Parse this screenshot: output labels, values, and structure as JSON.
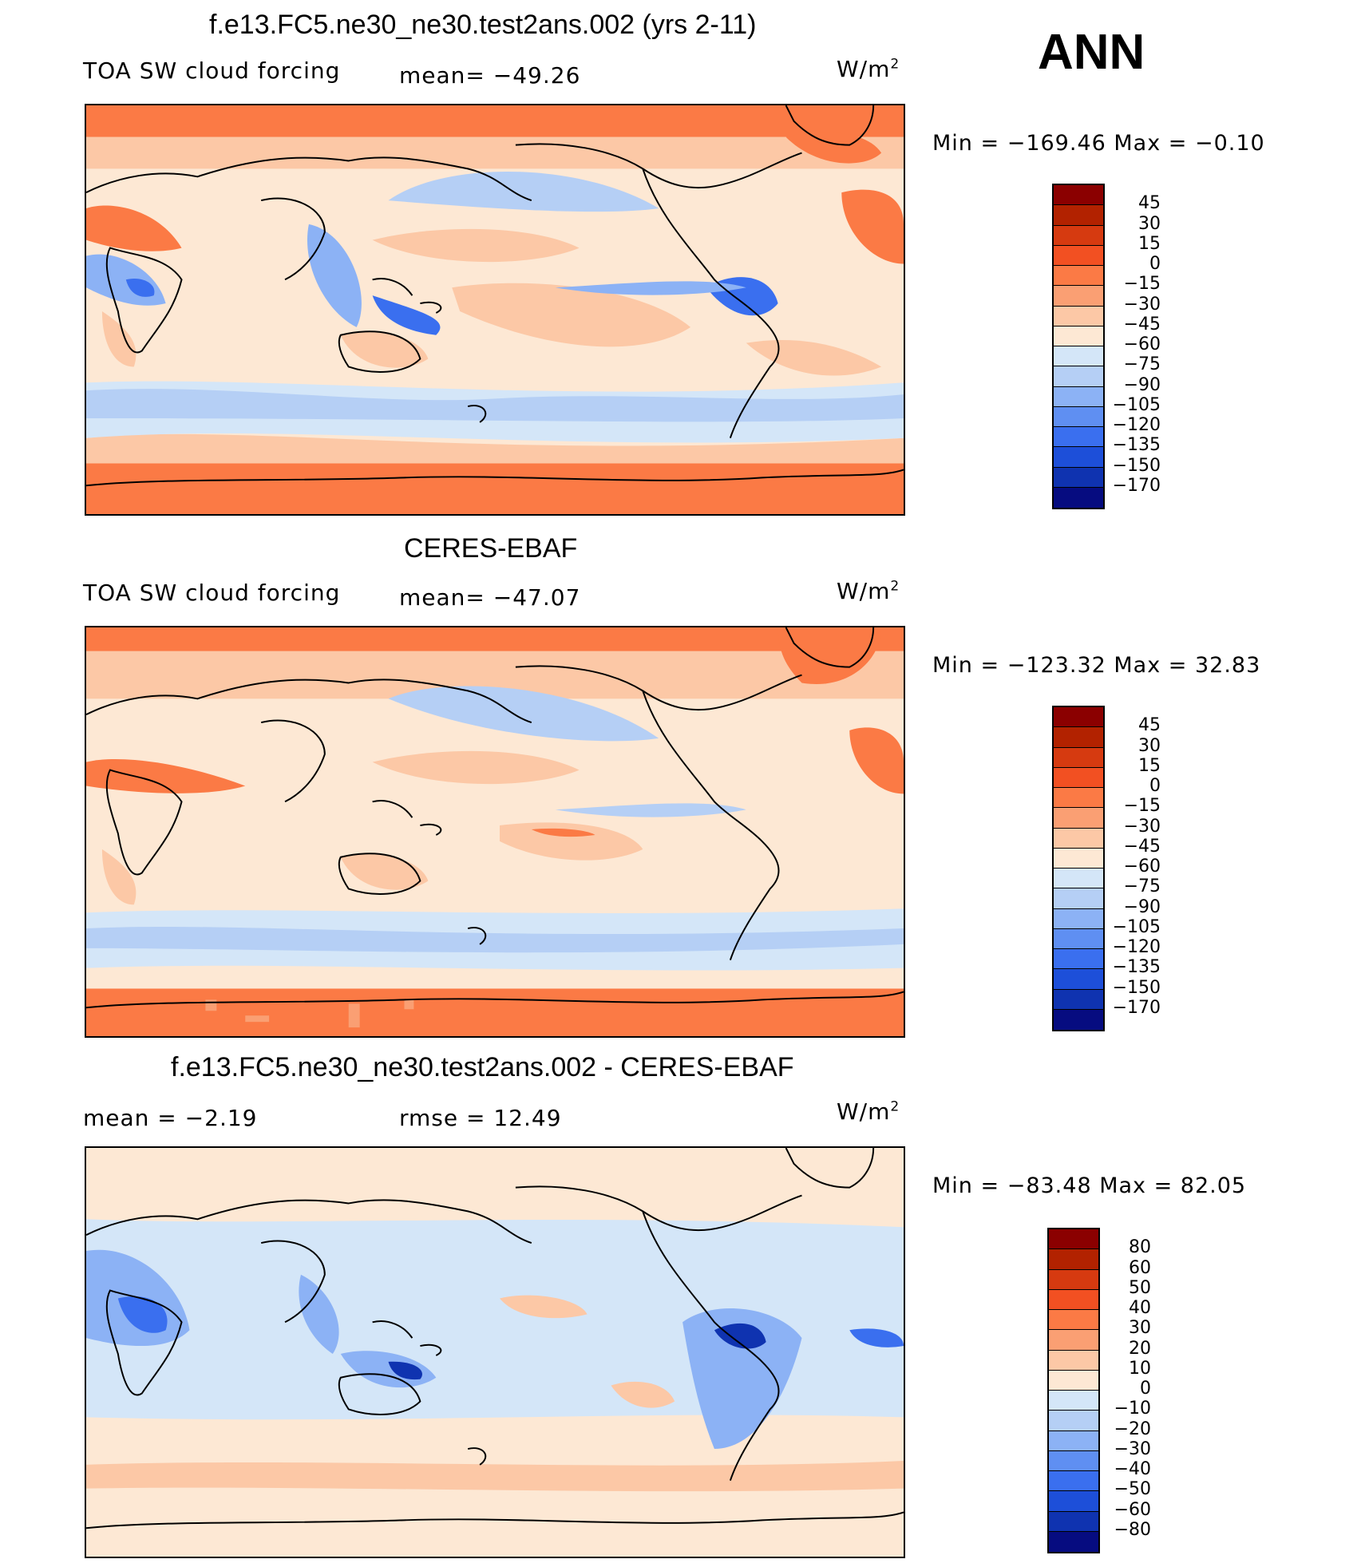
{
  "season": "ANN",
  "panels": [
    {
      "title": "f.e13.FC5.ne30_ne30.test2ans.002 (yrs 2-11)",
      "left_label": "TOA SW cloud forcing",
      "mid_label": "mean= −49.26",
      "units": "W/m",
      "units_sup": "2",
      "minmax": "Min = −169.46 Max =  −0.10",
      "colorbar_labels": [
        "45",
        "30",
        "15",
        "0",
        "−15",
        "−30",
        "−45",
        "−60",
        "−75",
        "−90",
        "−105",
        "−120",
        "−135",
        "−150",
        "−170"
      ]
    },
    {
      "title": "CERES-EBAF",
      "left_label": "TOA SW cloud forcing",
      "mid_label": "mean= −47.07",
      "units": "W/m",
      "units_sup": "2",
      "minmax": "Min = −123.32 Max =  32.83",
      "colorbar_labels": [
        "45",
        "30",
        "15",
        "0",
        "−15",
        "−30",
        "−45",
        "−60",
        "−75",
        "−90",
        "−105",
        "−120",
        "−135",
        "−150",
        "−170"
      ]
    },
    {
      "title": "f.e13.FC5.ne30_ne30.test2ans.002 - CERES-EBAF",
      "left_label": "mean =   −2.19",
      "mid_label": "rmse =   12.49",
      "units": "W/m",
      "units_sup": "2",
      "minmax": "Min = −83.48 Max =  82.05",
      "colorbar_labels": [
        "80",
        "60",
        "50",
        "40",
        "30",
        "20",
        "10",
        "0",
        "−10",
        "−20",
        "−30",
        "−40",
        "−50",
        "−60",
        "−80"
      ]
    }
  ],
  "colorbar_colors": [
    "#8b0000",
    "#b22200",
    "#d63a10",
    "#f25022",
    "#fb7a45",
    "#fa9f73",
    "#fcc8a6",
    "#fde8d4",
    "#d4e6f8",
    "#b5cff5",
    "#8cb2f5",
    "#5f8ff2",
    "#3a6fef",
    "#1d4fd9",
    "#0f33b0",
    "#060c80"
  ],
  "map_colors": {
    "ocean_orange": "#fb7a45",
    "light_orange": "#fcc8a6",
    "cream": "#fde8d4",
    "light_blue": "#d4e6f8",
    "mid_blue": "#b5cff5",
    "blue": "#8cb2f5",
    "deep_blue": "#3a6fef",
    "darkest_blue": "#0f33b0"
  }
}
